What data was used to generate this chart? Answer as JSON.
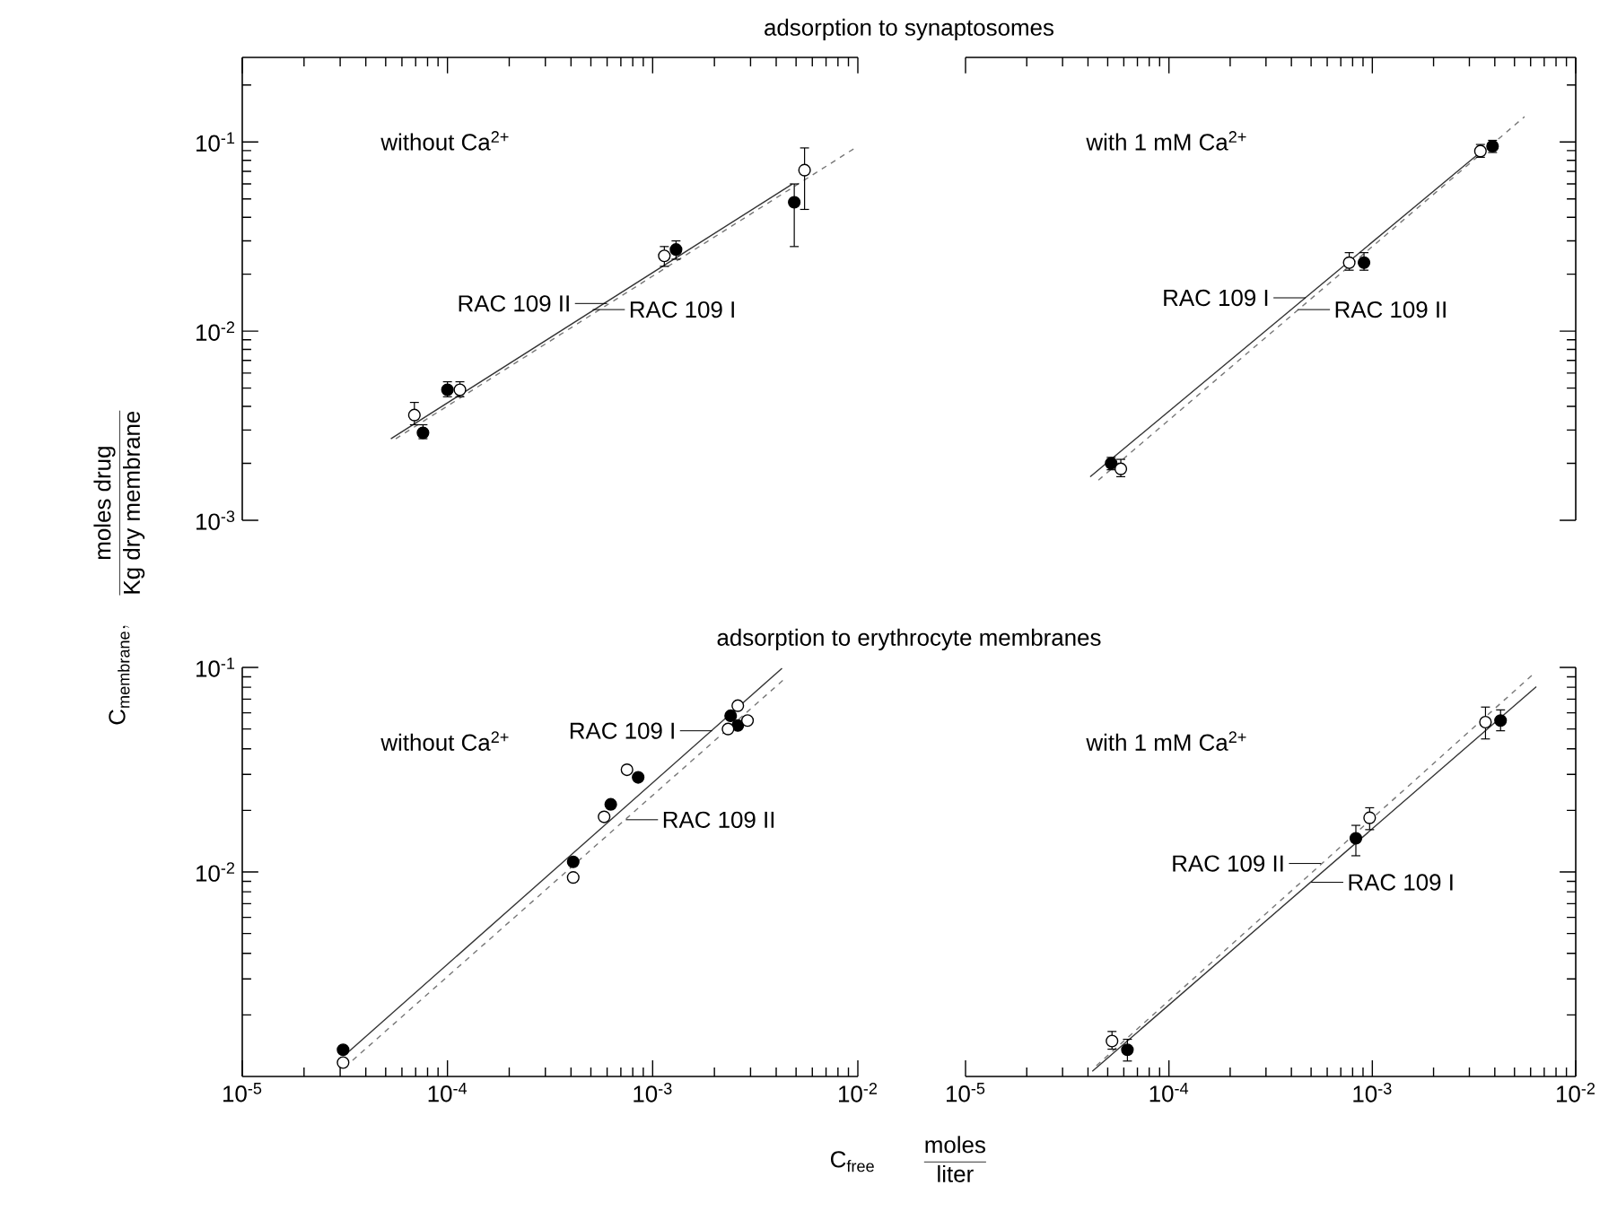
{
  "chart_data": [
    {
      "type": "scatter",
      "log": "xy",
      "tick_labels": "y",
      "title": "adsorption to synaptosomes",
      "xlim": [
        1e-05,
        0.01
      ],
      "ylim": [
        0.001,
        0.28
      ],
      "xticks": [
        {
          "value": 1e-05,
          "label": null
        },
        {
          "value": 0.0001,
          "label": null
        },
        {
          "value": 0.001,
          "label": null
        },
        {
          "value": 0.01,
          "label": null
        }
      ],
      "yticks": [
        {
          "value": 0.001,
          "label": "10$^{-3}$"
        },
        {
          "value": 0.01,
          "label": "10$^{-2}$"
        },
        {
          "value": 0.1,
          "label": "10$^{-1}$"
        }
      ],
      "annotations": [
        "without Ca$^{2+}$",
        {
          "text": "RAC 109 II",
          "x": 0.0006,
          "y": 0.014
        },
        {
          "text": "RAC 109 I",
          "x": 0.00051,
          "y": 0.013
        }
      ],
      "series": [
        {
          "type": "line",
          "marker": "none",
          "line_style": "solid",
          "color": "#333333",
          "x": [
            5.3e-05,
            0.0048
          ],
          "values": [
            0.0027,
            0.06
          ]
        },
        {
          "type": "line",
          "marker": "none",
          "line_style": "dashed",
          "color": "#777777",
          "x": [
            5.6e-05,
            0.0097
          ],
          "values": [
            0.0027,
            0.093
          ]
        },
        {
          "marker": "circle",
          "color": "#000000",
          "x": [
            7.6e-05,
            0.0001,
            0.0013,
            0.0049
          ],
          "values": [
            0.0029,
            0.0049,
            0.027,
            0.048
          ],
          "errors": [
            [
              0.0027,
              0.0032
            ],
            [
              0.0045,
              0.0054
            ],
            [
              0.024,
              0.03
            ],
            [
              0.028,
              0.06
            ]
          ]
        },
        {
          "marker": "circle",
          "color": "#ffffff",
          "x": [
            6.9e-05,
            0.000115,
            0.00114,
            0.0055
          ],
          "values": [
            0.0036,
            0.0049,
            0.025,
            0.071
          ],
          "errors": [
            [
              0.0032,
              0.0042
            ],
            [
              0.0045,
              0.0054
            ],
            [
              0.022,
              0.028
            ],
            [
              0.044,
              0.093
            ]
          ]
        }
      ]
    },
    {
      "type": "scatter",
      "log": "xy",
      "tick_labels": false,
      "xlim": [
        1e-05,
        0.01
      ],
      "ylim": [
        0.001,
        0.28
      ],
      "xticks": [
        {
          "value": 1e-05,
          "label": null
        },
        {
          "value": 0.0001,
          "label": null
        },
        {
          "value": 0.001,
          "label": null
        },
        {
          "value": 0.01,
          "label": null
        }
      ],
      "yticks": [
        {
          "value": 0.001,
          "label": null
        },
        {
          "value": 0.01,
          "label": null
        },
        {
          "value": 0.1,
          "label": null
        }
      ],
      "annotations": [
        "with 1 mM Ca$^{2+}$",
        {
          "text": "RAC 109 I",
          "x": 0.00047,
          "y": 0.015
        },
        {
          "text": "RAC 109 II",
          "x": 0.00043,
          "y": 0.013
        }
      ],
      "series": [
        {
          "type": "line",
          "marker": "none",
          "line_style": "solid",
          "color": "#333333",
          "x": [
            4.1e-05,
            0.0036
          ],
          "values": [
            0.0017,
            0.093
          ]
        },
        {
          "type": "line",
          "marker": "none",
          "line_style": "dashed",
          "color": "#777777",
          "x": [
            4.5e-05,
            0.0056
          ],
          "values": [
            0.00163,
            0.136
          ]
        },
        {
          "marker": "circle",
          "color": "#000000",
          "x": [
            5.2e-05,
            0.00091,
            0.0039
          ],
          "values": [
            0.002,
            0.023,
            0.095
          ],
          "errors": [
            [
              0.00185,
              0.00215
            ],
            [
              0.021,
              0.026
            ],
            [
              0.088,
              0.102
            ]
          ]
        },
        {
          "marker": "circle",
          "color": "#ffffff",
          "x": [
            5.8e-05,
            0.00077,
            0.0034
          ],
          "values": [
            0.00187,
            0.023,
            0.0895
          ],
          "errors": [
            [
              0.0017,
              0.0021
            ],
            [
              0.021,
              0.026
            ],
            [
              0.083,
              0.097
            ]
          ]
        }
      ]
    },
    {
      "type": "scatter",
      "log": "xy",
      "title": "adsorption to erythrocyte membranes",
      "xlabel": "\\mathrm{C}_{\\mathrm{free}}\\qquad\\frac{\\mathrm{moles}}{\\mathrm{liter}}",
      "ylabel": "\\mathrm{C}_{\\mathrm{membrane}},\\quad\\frac{\\mathrm{moles\\ drug}}{\\mathrm{Kg\\ dry\\ membrane}}",
      "xlim": [
        1e-05,
        0.01
      ],
      "ylim": [
        0.001,
        0.1
      ],
      "xticks": [
        {
          "value": 1e-05,
          "label": "10$^{-5}$"
        },
        {
          "value": 0.0001,
          "label": "10$^{-4}$"
        },
        {
          "value": 0.001,
          "label": "10$^{-3}$"
        },
        {
          "value": 0.01,
          "label": "10$^{-2}$"
        }
      ],
      "yticks": [
        {
          "value": 0.01,
          "label": "10$^{-2}$"
        },
        {
          "value": 0.1,
          "label": "10$^{-1}$"
        }
      ],
      "annotations": [
        "without Ca$^{2+}$",
        {
          "text": "RAC 109 I",
          "x": 0.00195,
          "y": 0.049
        },
        {
          "text": "RAC 109 II",
          "x": 0.00074,
          "y": 0.018
        }
      ],
      "series": [
        {
          "type": "line",
          "marker": "none",
          "line_style": "solid",
          "color": "#333333",
          "x": [
            3.24e-05,
            0.00427
          ],
          "values": [
            0.0013,
            0.099
          ]
        },
        {
          "type": "line",
          "marker": "none",
          "line_style": "dashed",
          "color": "#777777",
          "x": [
            3.45e-05,
            0.0044
          ],
          "values": [
            0.0012,
            0.088
          ]
        },
        {
          "marker": "circle",
          "color": "#000000",
          "x": [
            3.1e-05,
            0.00041,
            0.000625,
            0.00085,
            0.0024,
            0.0026
          ],
          "values": [
            0.00135,
            0.0112,
            0.0214,
            0.029,
            0.058,
            0.052
          ]
        },
        {
          "marker": "circle",
          "color": "#ffffff",
          "x": [
            3.1e-05,
            0.00041,
            0.00058,
            0.00075,
            0.00233,
            0.0026,
            0.0029
          ],
          "values": [
            0.00117,
            0.0094,
            0.0186,
            0.0316,
            0.05,
            0.065,
            0.055
          ]
        }
      ]
    },
    {
      "type": "scatter",
      "log": "xy",
      "tick_labels": "x",
      "xlim": [
        1e-05,
        0.01
      ],
      "ylim": [
        0.001,
        0.1
      ],
      "xticks": [
        {
          "value": 1e-05,
          "label": "10$^{-5}$"
        },
        {
          "value": 0.0001,
          "label": "10$^{-4}$"
        },
        {
          "value": 0.001,
          "label": "10$^{-3}$"
        },
        {
          "value": 0.01,
          "label": "10$^{-2}$"
        }
      ],
      "yticks": [
        {
          "value": 0.01,
          "label": null
        },
        {
          "value": 0.1,
          "label": null
        }
      ],
      "annotations": [
        "with 1 mM Ca$^{2+}$",
        {
          "text": "RAC 109 II",
          "x": 0.00056,
          "y": 0.011
        },
        {
          "text": "RAC 109 I",
          "x": 0.0005,
          "y": 0.0089
        }
      ],
      "series": [
        {
          "type": "line",
          "marker": "none",
          "line_style": "solid",
          "color": "#333333",
          "x": [
            4.2e-05,
            0.0064
          ],
          "values": [
            0.00106,
            0.0805
          ]
        },
        {
          "type": "line",
          "marker": "none",
          "line_style": "dashed",
          "color": "#777777",
          "x": [
            4.4e-05,
            0.0062
          ],
          "values": [
            0.00113,
            0.093
          ]
        },
        {
          "marker": "circle",
          "color": "#000000",
          "x": [
            6.25e-05,
            0.00083,
            0.00427
          ],
          "values": [
            0.00135,
            0.0146,
            0.055
          ],
          "errors": [
            [
              0.00119,
              0.00152
            ],
            [
              0.012,
              0.0169
            ],
            [
              0.049,
              0.062
            ]
          ]
        },
        {
          "marker": "circle",
          "color": "#ffffff",
          "x": [
            5.25e-05,
            0.00097,
            0.0036
          ],
          "values": [
            0.00149,
            0.0184,
            0.054
          ],
          "errors": [
            [
              0.00136,
              0.00166
            ],
            [
              0.0161,
              0.0206
            ],
            [
              0.0447,
              0.064
            ]
          ]
        }
      ]
    }
  ]
}
